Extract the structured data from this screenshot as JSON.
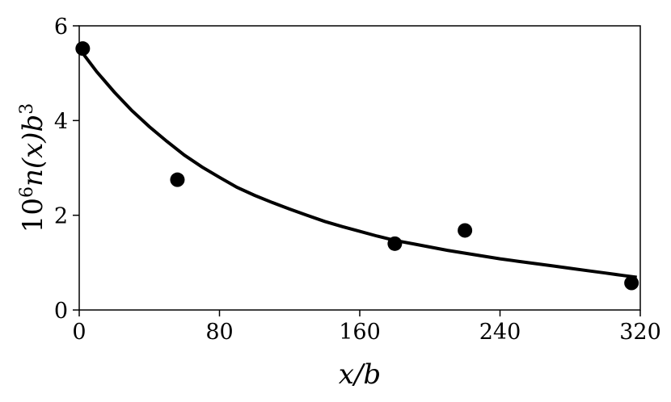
{
  "chart_data": {
    "type": "scatter",
    "xlabel": "x/b",
    "ylabel": "10^6 n(x) b^3",
    "ylabel_parts": {
      "base": "10",
      "exp": "6",
      "mid": "n(x)b",
      "exp2": "3"
    },
    "xlim": [
      0,
      320
    ],
    "ylim": [
      0,
      6
    ],
    "xticks": [
      0,
      80,
      160,
      240,
      320
    ],
    "yticks": [
      0,
      2,
      4,
      6
    ],
    "grid": false,
    "series": [
      {
        "kind": "points",
        "x": [
          2,
          56,
          180,
          220,
          315
        ],
        "y": [
          5.52,
          2.75,
          1.4,
          1.68,
          0.57
        ]
      },
      {
        "kind": "line",
        "x": [
          0,
          10,
          20,
          30,
          40,
          50,
          60,
          70,
          80,
          90,
          100,
          110,
          120,
          130,
          140,
          150,
          160,
          170,
          180,
          190,
          200,
          210,
          220,
          230,
          240,
          250,
          260,
          270,
          280,
          290,
          300,
          310,
          318
        ],
        "y": [
          5.52,
          5.03,
          4.6,
          4.21,
          3.87,
          3.56,
          3.27,
          3.02,
          2.8,
          2.59,
          2.42,
          2.27,
          2.13,
          2.0,
          1.87,
          1.76,
          1.66,
          1.56,
          1.47,
          1.4,
          1.33,
          1.26,
          1.2,
          1.14,
          1.08,
          1.03,
          0.98,
          0.93,
          0.88,
          0.83,
          0.78,
          0.73,
          0.69
        ]
      }
    ]
  }
}
